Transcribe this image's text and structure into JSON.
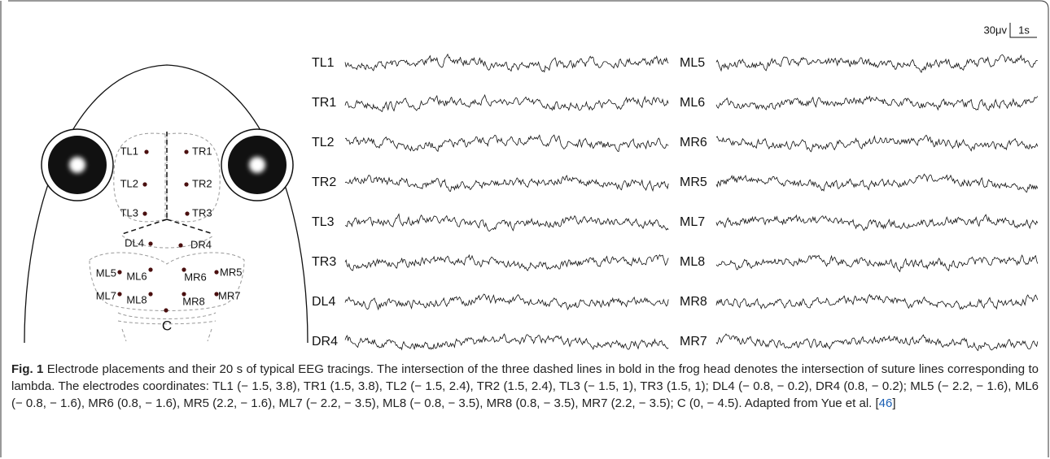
{
  "scale": {
    "amplitude": "30μv",
    "time": "1s"
  },
  "head": {
    "electrodes": [
      "TL1",
      "TR1",
      "TL2",
      "TR2",
      "TL3",
      "TR3",
      "DL4",
      "DR4",
      "ML5",
      "ML6",
      "MR6",
      "MR5",
      "ML7",
      "ML8",
      "MR8",
      "MR7",
      "C"
    ]
  },
  "traces": {
    "left": [
      "TL1",
      "TR1",
      "TL2",
      "TR2",
      "TL3",
      "TR3",
      "DL4",
      "DR4"
    ],
    "right": [
      "ML5",
      "ML6",
      "MR6",
      "MR5",
      "ML7",
      "ML8",
      "MR8",
      "MR7"
    ]
  },
  "caption": {
    "label": "Fig. 1",
    "text": "Electrode placements and their 20 s of typical EEG tracings. The intersection of the three dashed lines in bold in the frog head denotes the intersection of suture lines corresponding to lambda. The electrodes coordinates: TL1 (− 1.5, 3.8), TR1 (1.5, 3.8), TL2 (− 1.5, 2.4), TR2 (1.5, 2.4), TL3 (− 1.5, 1), TR3 (1.5, 1); DL4 (− 0.8, − 0.2), DR4 (0.8, − 0.2); ML5 (− 2.2, − 1.6), ML6 (− 0.8, − 1.6), MR6 (0.8, − 1.6), MR5 (2.2, − 1.6), ML7 (− 2.2, − 3.5), ML8 (− 0.8, − 3.5), MR8 (0.8, − 3.5), MR7 (2.2, − 3.5); C (0, − 4.5). Adapted from Yue et al. [",
    "citation": "46",
    "close": "]"
  }
}
